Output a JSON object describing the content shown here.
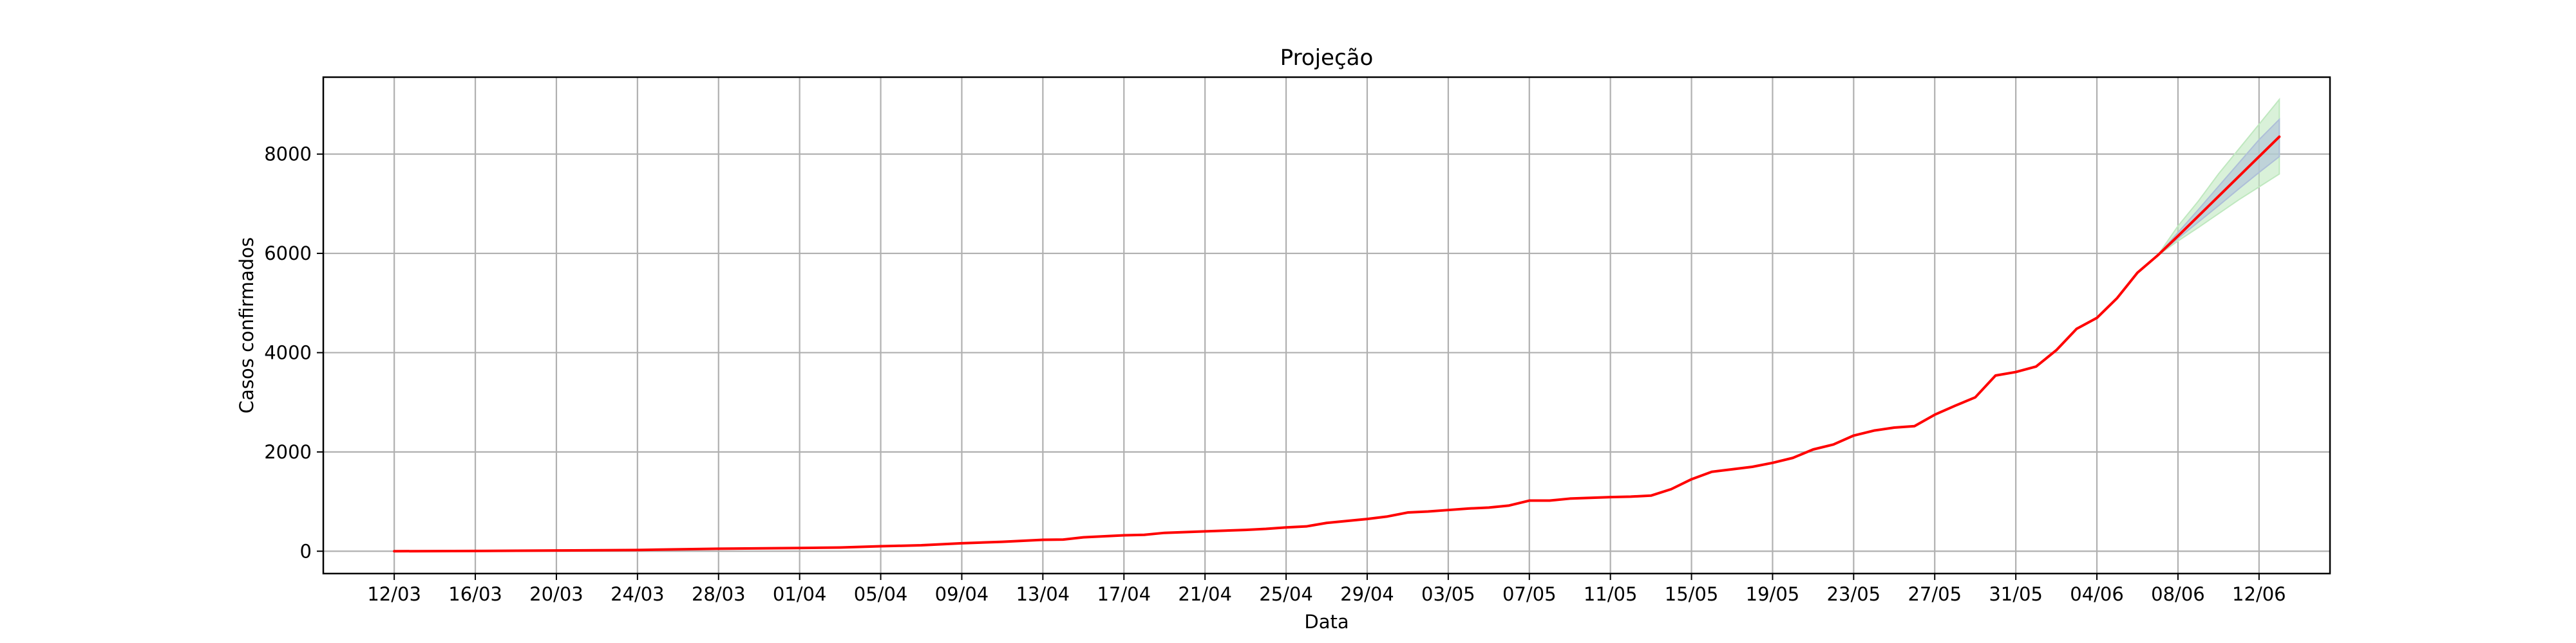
{
  "chart_data": {
    "type": "line",
    "title": "Projeção",
    "xlabel": "Data",
    "ylabel": "Casos confirmados",
    "grid": true,
    "ylim": [
      -450,
      9550
    ],
    "yticks": [
      0,
      2000,
      4000,
      6000,
      8000
    ],
    "xlim": [
      -3.5,
      95.5
    ],
    "xticks": [
      {
        "day": 0,
        "label": "12/03"
      },
      {
        "day": 4,
        "label": "16/03"
      },
      {
        "day": 8,
        "label": "20/03"
      },
      {
        "day": 12,
        "label": "24/03"
      },
      {
        "day": 16,
        "label": "28/03"
      },
      {
        "day": 20,
        "label": "01/04"
      },
      {
        "day": 24,
        "label": "05/04"
      },
      {
        "day": 28,
        "label": "09/04"
      },
      {
        "day": 32,
        "label": "13/04"
      },
      {
        "day": 36,
        "label": "17/04"
      },
      {
        "day": 40,
        "label": "21/04"
      },
      {
        "day": 44,
        "label": "25/04"
      },
      {
        "day": 48,
        "label": "29/04"
      },
      {
        "day": 52,
        "label": "03/05"
      },
      {
        "day": 56,
        "label": "07/05"
      },
      {
        "day": 60,
        "label": "11/05"
      },
      {
        "day": 64,
        "label": "15/05"
      },
      {
        "day": 68,
        "label": "19/05"
      },
      {
        "day": 72,
        "label": "23/05"
      },
      {
        "day": 76,
        "label": "27/05"
      },
      {
        "day": 80,
        "label": "31/05"
      },
      {
        "day": 84,
        "label": "04/06"
      },
      {
        "day": 88,
        "label": "08/06"
      },
      {
        "day": 92,
        "label": "12/06"
      }
    ],
    "series": [
      {
        "name": "Casos confirmados",
        "color": "#ff0000",
        "points": [
          [
            0,
            0
          ],
          [
            4,
            5
          ],
          [
            8,
            15
          ],
          [
            12,
            25
          ],
          [
            16,
            50
          ],
          [
            20,
            65
          ],
          [
            22,
            75
          ],
          [
            24,
            100
          ],
          [
            26,
            120
          ],
          [
            28,
            160
          ],
          [
            30,
            190
          ],
          [
            32,
            230
          ],
          [
            33,
            235
          ],
          [
            34,
            280
          ],
          [
            36,
            320
          ],
          [
            37,
            330
          ],
          [
            38,
            370
          ],
          [
            40,
            400
          ],
          [
            42,
            430
          ],
          [
            43,
            450
          ],
          [
            44,
            480
          ],
          [
            45,
            500
          ],
          [
            46,
            570
          ],
          [
            48,
            650
          ],
          [
            49,
            700
          ],
          [
            50,
            780
          ],
          [
            51,
            800
          ],
          [
            52,
            830
          ],
          [
            53,
            860
          ],
          [
            54,
            880
          ],
          [
            55,
            920
          ],
          [
            56,
            1020
          ],
          [
            57,
            1020
          ],
          [
            58,
            1060
          ],
          [
            60,
            1090
          ],
          [
            61,
            1100
          ],
          [
            62,
            1120
          ],
          [
            63,
            1250
          ],
          [
            64,
            1450
          ],
          [
            65,
            1600
          ],
          [
            66,
            1650
          ],
          [
            67,
            1700
          ],
          [
            68,
            1780
          ],
          [
            69,
            1880
          ],
          [
            70,
            2050
          ],
          [
            71,
            2150
          ],
          [
            72,
            2330
          ],
          [
            73,
            2430
          ],
          [
            74,
            2490
          ],
          [
            75,
            2520
          ],
          [
            76,
            2750
          ],
          [
            77,
            2930
          ],
          [
            78,
            3100
          ],
          [
            79,
            3540
          ],
          [
            80,
            3610
          ],
          [
            81,
            3720
          ],
          [
            82,
            4050
          ],
          [
            83,
            4480
          ],
          [
            84,
            4700
          ],
          [
            85,
            5100
          ],
          [
            86,
            5610
          ],
          [
            87,
            5960
          ],
          [
            88,
            6350
          ],
          [
            89,
            6750
          ],
          [
            90,
            7150
          ],
          [
            91,
            7550
          ],
          [
            92,
            7950
          ],
          [
            93,
            8350
          ]
        ]
      }
    ],
    "confidence_bands": [
      {
        "name": "outer",
        "color": "#bfe8bf",
        "days": [
          87,
          88,
          89,
          90,
          91,
          92,
          93
        ],
        "lower": [
          5960,
          6250,
          6520,
          6800,
          7080,
          7340,
          7600
        ],
        "upper": [
          5960,
          6550,
          7050,
          7600,
          8100,
          8600,
          9100
        ]
      },
      {
        "name": "inner",
        "color": "#aebfd8",
        "days": [
          87,
          88,
          89,
          90,
          91,
          92,
          93
        ],
        "lower": [
          5960,
          6300,
          6630,
          6960,
          7300,
          7630,
          7950
        ],
        "upper": [
          5960,
          6420,
          6880,
          7350,
          7820,
          8290,
          8700
        ]
      }
    ]
  }
}
